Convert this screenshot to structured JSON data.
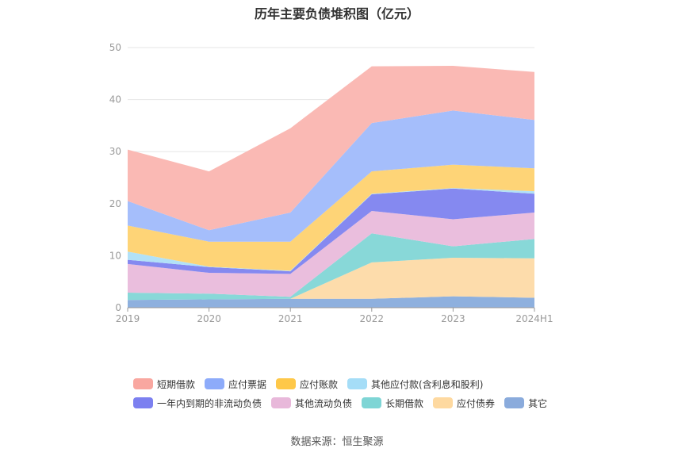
{
  "chart_data": {
    "type": "area",
    "stacked": true,
    "title": "历年主要负债堆积图（亿元）",
    "categories": [
      "2019",
      "2020",
      "2021",
      "2022",
      "2023",
      "2024H1"
    ],
    "y_ticks": [
      "0",
      "10",
      "20",
      "30",
      "40",
      "50"
    ],
    "ylim": [
      0,
      50
    ],
    "grid": true,
    "legend_position": "bottom",
    "series": [
      {
        "name": "其它",
        "color": "#8eb0de",
        "values": [
          1.5,
          1.6,
          1.7,
          1.7,
          2.2,
          1.9
        ]
      },
      {
        "name": "应付债券",
        "color": "#fddcab",
        "values": [
          0.0,
          0.0,
          0.0,
          7.0,
          7.4,
          7.6
        ]
      },
      {
        "name": "长期借款",
        "color": "#88d8d8",
        "values": [
          1.4,
          1.1,
          0.4,
          5.6,
          2.2,
          3.7
        ]
      },
      {
        "name": "其他流动负债",
        "color": "#eabedd",
        "values": [
          5.5,
          4.0,
          4.4,
          4.3,
          5.2,
          5.1
        ]
      },
      {
        "name": "一年内到期的非流动负债",
        "color": "#8589f0",
        "values": [
          0.8,
          1.1,
          0.5,
          3.2,
          5.9,
          3.6
        ]
      },
      {
        "name": "其他应付款(含利息和股利)",
        "color": "#b2e1f7",
        "values": [
          1.6,
          0.1,
          0.1,
          0.1,
          0.1,
          0.5
        ]
      },
      {
        "name": "应付账款",
        "color": "#fed477",
        "values": [
          5.0,
          4.8,
          5.6,
          4.3,
          4.5,
          4.4
        ]
      },
      {
        "name": "应付票据",
        "color": "#a5befb",
        "values": [
          4.7,
          2.2,
          5.6,
          9.3,
          10.4,
          9.3
        ]
      },
      {
        "name": "短期借款",
        "color": "#fab9b4",
        "values": [
          9.9,
          11.3,
          16.2,
          10.9,
          8.6,
          9.2
        ]
      }
    ],
    "source": "数据来源：恒生聚源"
  },
  "legend": {
    "rows": [
      [
        {
          "label": "短期借款",
          "color": "#f9a7a0"
        },
        {
          "label": "应付票据",
          "color": "#8dabfa"
        },
        {
          "label": "应付账款",
          "color": "#fec849"
        },
        {
          "label": "其他应付款(含利息和股利)",
          "color": "#a5ddf7"
        }
      ],
      [
        {
          "label": "一年内到期的非流动负债",
          "color": "#7c80f0"
        },
        {
          "label": "其他流动负债",
          "color": "#e8b8da"
        },
        {
          "label": "长期借款",
          "color": "#7ed5d5"
        },
        {
          "label": "应付债券",
          "color": "#fed9a0"
        },
        {
          "label": "其它",
          "color": "#8aabdc"
        }
      ]
    ]
  }
}
